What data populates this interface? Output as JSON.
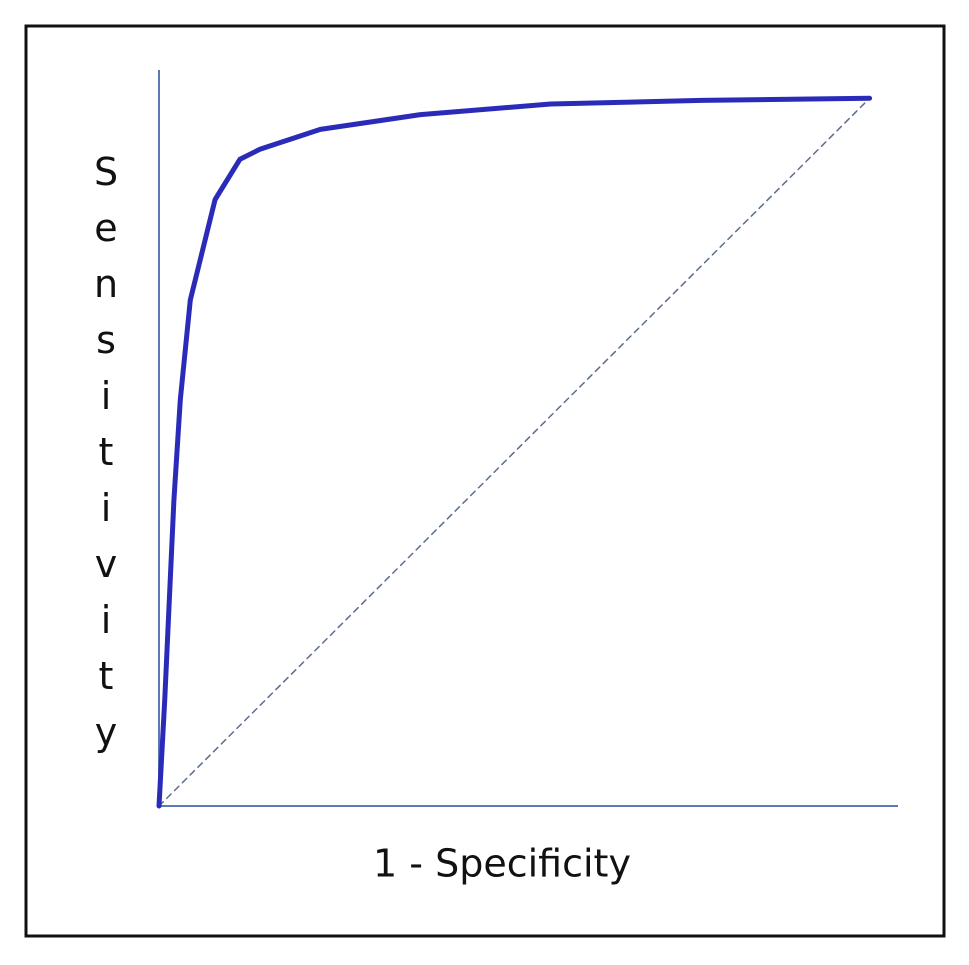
{
  "chart_data": {
    "type": "line",
    "xlabel": "1 - Specificity",
    "ylabel": "Sensitivity",
    "xlim": [
      0,
      1.04
    ],
    "ylim": [
      0,
      1.04
    ],
    "series": [
      {
        "color": "#2b2bb9",
        "dashed": false,
        "x": [
          0,
          0.008,
          0.021,
          0.03,
          0.044,
          0.079,
          0.114,
          0.142,
          0.227,
          0.368,
          0.551,
          0.763,
          1.0
        ],
        "values": [
          0,
          0.149,
          0.432,
          0.574,
          0.715,
          0.857,
          0.914,
          0.928,
          0.956,
          0.977,
          0.992,
          0.997,
          1.0
        ]
      },
      {
        "color": "#5a6e8c",
        "dashed": true,
        "x": [
          0,
          1.0
        ],
        "values": [
          0,
          1.0
        ]
      }
    ]
  }
}
